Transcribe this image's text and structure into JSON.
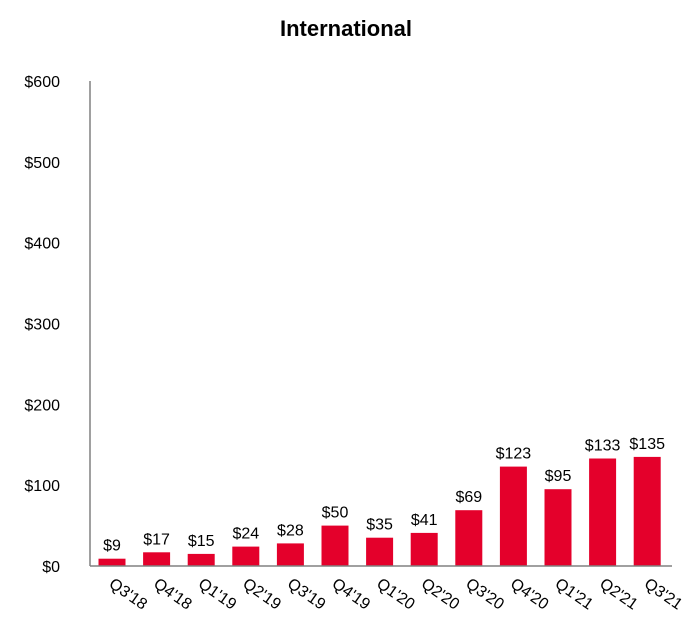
{
  "chart_data": {
    "type": "bar",
    "title": "International",
    "xlabel": "",
    "ylabel": "",
    "categories": [
      "Q3'18",
      "Q4'18",
      "Q1'19",
      "Q2'19",
      "Q3'19",
      "Q4'19",
      "Q1'20",
      "Q2'20",
      "Q3'20",
      "Q4'20",
      "Q1'21",
      "Q2'21",
      "Q3'21"
    ],
    "values": [
      9,
      17,
      15,
      24,
      28,
      50,
      35,
      41,
      69,
      123,
      95,
      133,
      135
    ],
    "data_labels": [
      "$9",
      "$17",
      "$15",
      "$24",
      "$28",
      "$50",
      "$35",
      "$41",
      "$69",
      "$123",
      "$95",
      "$133",
      "$135"
    ],
    "y_ticks": [
      0,
      100,
      200,
      300,
      400,
      500,
      600
    ],
    "y_tick_labels": [
      "$0",
      "$100",
      "$200",
      "$300",
      "$400",
      "$500",
      "$600"
    ],
    "ylim": [
      0,
      600
    ],
    "grid": false,
    "legend": "none",
    "bar_color": "#e4002b"
  }
}
